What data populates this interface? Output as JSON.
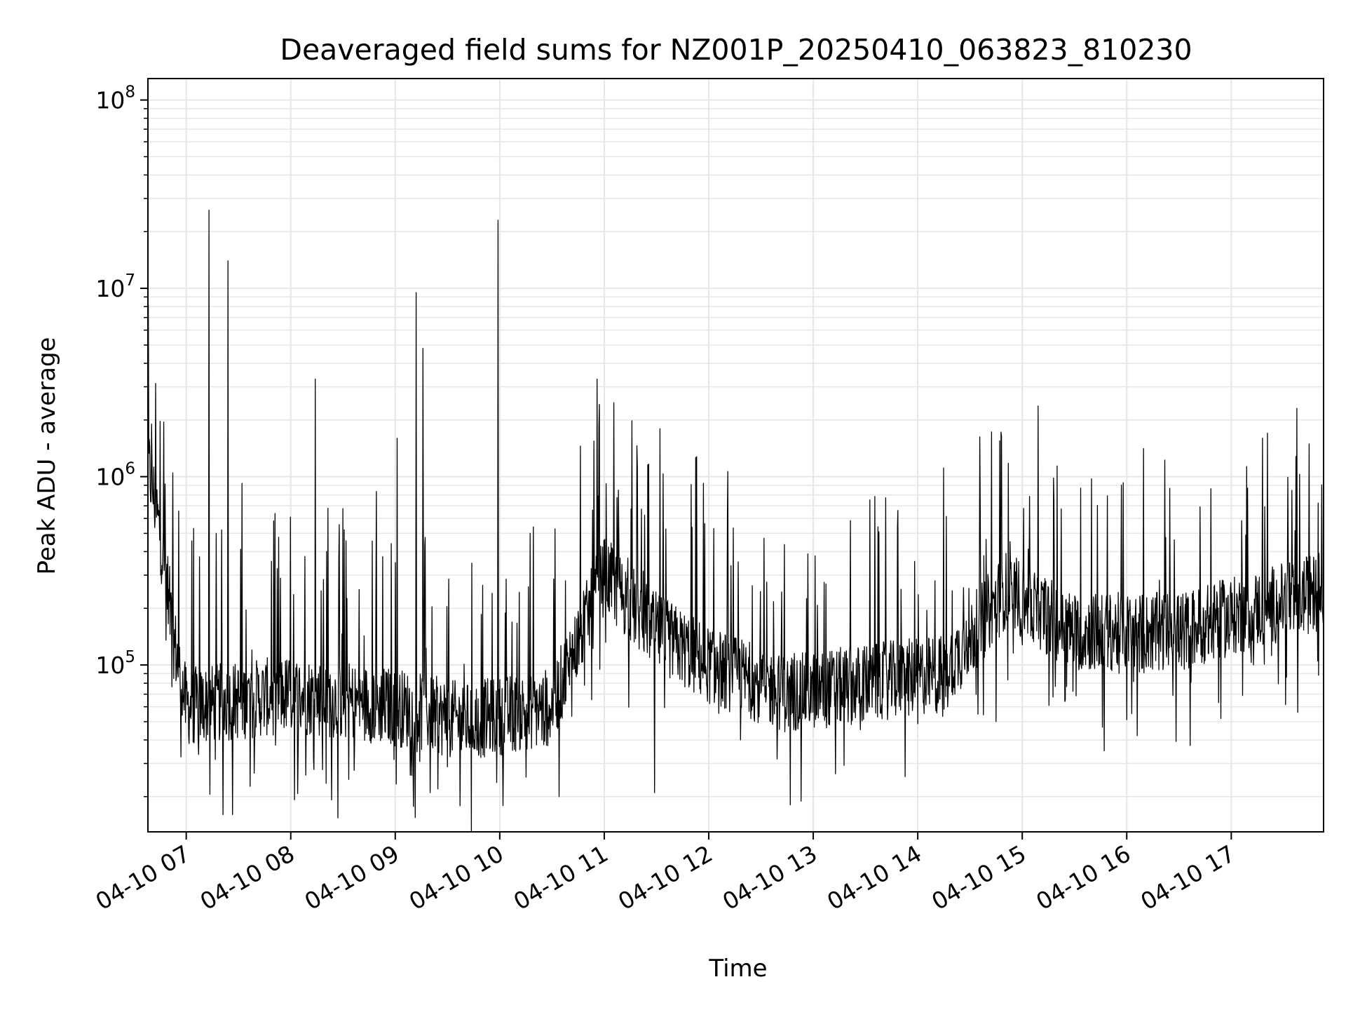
{
  "chart_data": {
    "type": "line",
    "title": "Deaveraged field sums for NZ001P_20250410_063823_810230",
    "xlabel": "Time",
    "ylabel": "Peak ADU - average",
    "yscale": "log",
    "ylim": [
      13000,
      130000000
    ],
    "xlim": [
      "2025-04-10 06:38",
      "2025-04-10 17:53"
    ],
    "grid": true,
    "line_color": "#000000",
    "grid_color": "#e6e6e6",
    "y_ticks": [
      {
        "value": 100000,
        "base": "10",
        "exp": "5"
      },
      {
        "value": 1000000,
        "base": "10",
        "exp": "6"
      },
      {
        "value": 10000000,
        "base": "10",
        "exp": "7"
      },
      {
        "value": 100000000,
        "base": "10",
        "exp": "8"
      }
    ],
    "x_ticks": [
      {
        "time": "2025-04-10 07:00",
        "label": "04-10 07"
      },
      {
        "time": "2025-04-10 08:00",
        "label": "04-10 08"
      },
      {
        "time": "2025-04-10 09:00",
        "label": "04-10 09"
      },
      {
        "time": "2025-04-10 10:00",
        "label": "04-10 10"
      },
      {
        "time": "2025-04-10 11:00",
        "label": "04-10 11"
      },
      {
        "time": "2025-04-10 12:00",
        "label": "04-10 12"
      },
      {
        "time": "2025-04-10 13:00",
        "label": "04-10 13"
      },
      {
        "time": "2025-04-10 14:00",
        "label": "04-10 14"
      },
      {
        "time": "2025-04-10 15:00",
        "label": "04-10 15"
      },
      {
        "time": "2025-04-10 16:00",
        "label": "04-10 16"
      },
      {
        "time": "2025-04-10 17:00",
        "label": "04-10 17"
      }
    ],
    "baseline_envelope": [
      {
        "time": "2025-04-10 06:38",
        "value": 1200000
      },
      {
        "time": "2025-04-10 06:45",
        "value": 500000
      },
      {
        "time": "2025-04-10 06:52",
        "value": 150000
      },
      {
        "time": "2025-04-10 07:00",
        "value": 60000
      },
      {
        "time": "2025-04-10 08:00",
        "value": 70000
      },
      {
        "time": "2025-04-10 09:00",
        "value": 60000
      },
      {
        "time": "2025-04-10 09:40",
        "value": 50000
      },
      {
        "time": "2025-04-10 10:30",
        "value": 60000
      },
      {
        "time": "2025-04-10 11:00",
        "value": 300000
      },
      {
        "time": "2025-04-10 11:30",
        "value": 150000
      },
      {
        "time": "2025-04-10 12:00",
        "value": 100000
      },
      {
        "time": "2025-04-10 12:45",
        "value": 70000
      },
      {
        "time": "2025-04-10 13:30",
        "value": 80000
      },
      {
        "time": "2025-04-10 14:15",
        "value": 90000
      },
      {
        "time": "2025-04-10 14:50",
        "value": 250000
      },
      {
        "time": "2025-04-10 15:30",
        "value": 150000
      },
      {
        "time": "2025-04-10 16:30",
        "value": 150000
      },
      {
        "time": "2025-04-10 17:53",
        "value": 250000
      }
    ],
    "peaks": [
      {
        "time": "2025-04-10 06:40",
        "value": 1900000
      },
      {
        "time": "2025-04-10 06:47",
        "value": 1950000
      },
      {
        "time": "2025-04-10 07:13",
        "value": 26000000
      },
      {
        "time": "2025-04-10 07:24",
        "value": 14000000
      },
      {
        "time": "2025-04-10 08:14",
        "value": 3300000
      },
      {
        "time": "2025-04-10 09:01",
        "value": 1600000
      },
      {
        "time": "2025-04-10 09:12",
        "value": 9500000
      },
      {
        "time": "2025-04-10 09:16",
        "value": 4800000
      },
      {
        "time": "2025-04-10 09:59",
        "value": 23000000
      },
      {
        "time": "2025-04-10 10:56",
        "value": 3300000
      },
      {
        "time": "2025-04-10 11:32",
        "value": 1800000
      },
      {
        "time": "2025-04-10 14:47",
        "value": 1550000
      }
    ],
    "dips": [
      {
        "time": "2025-04-10 09:20",
        "value": 21000
      },
      {
        "time": "2025-04-10 10:34",
        "value": 20000
      },
      {
        "time": "2025-04-10 11:29",
        "value": 21000
      },
      {
        "time": "2025-04-10 14:45",
        "value": 50000
      },
      {
        "time": "2025-04-10 15:47",
        "value": 35000
      }
    ]
  }
}
